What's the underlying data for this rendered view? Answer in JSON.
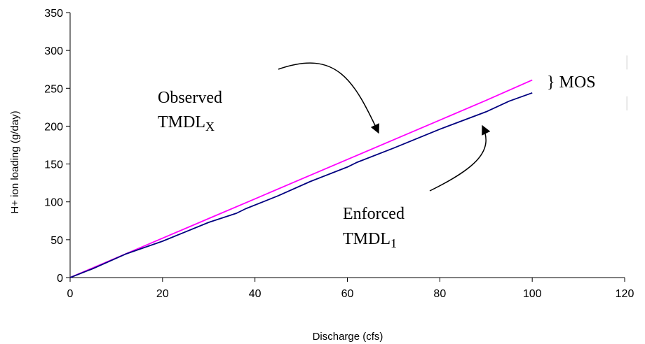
{
  "chart_data": {
    "type": "line",
    "xlabel": "Discharge (cfs)",
    "ylabel": "H+ ion loading (g/day)",
    "xlim": [
      0,
      120
    ],
    "ylim": [
      0,
      350
    ],
    "xticks": [
      0,
      20,
      40,
      60,
      80,
      100,
      120
    ],
    "yticks": [
      0,
      50,
      100,
      150,
      200,
      250,
      300,
      350
    ],
    "grid": false,
    "series": [
      {
        "key": "observed",
        "color": "#ff00ff",
        "x": [
          0,
          10,
          20,
          30,
          40,
          50,
          60,
          70,
          80,
          90,
          100
        ],
        "y": [
          0,
          26,
          52,
          78,
          104,
          130,
          156,
          182,
          208,
          234,
          261
        ]
      },
      {
        "key": "enforced",
        "color": "#000080",
        "x": [
          0,
          5,
          12,
          20,
          30,
          36,
          38,
          45,
          52,
          60,
          62,
          70,
          80,
          90,
          95,
          100
        ],
        "y": [
          0,
          12,
          31,
          48,
          73,
          85,
          91,
          108,
          127,
          146,
          152,
          171,
          196,
          219,
          233,
          244
        ]
      }
    ],
    "annotations": {
      "observed_label_line1": "Observed",
      "observed_label_line2": "TMDL",
      "observed_label_sub": "X",
      "enforced_label_line1": "Enforced",
      "enforced_label_line2": "TMDL",
      "enforced_label_sub": "1",
      "mos_label": "} MOS"
    }
  }
}
